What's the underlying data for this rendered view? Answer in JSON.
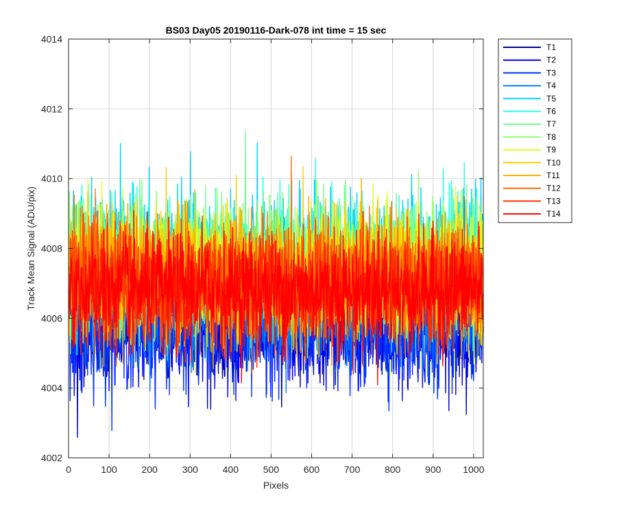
{
  "chart_data": {
    "type": "line",
    "title": "BS03 Day05 20190116-Dark-078 int time = 15 sec",
    "xlabel": "Pixels",
    "ylabel": "Track Mean Signal (ADU/pix)",
    "xlim": [
      0,
      1024
    ],
    "ylim": [
      4002,
      4014
    ],
    "xticks": [
      0,
      100,
      200,
      300,
      400,
      500,
      600,
      700,
      800,
      900,
      1000
    ],
    "yticks": [
      4002,
      4004,
      4006,
      4008,
      4010,
      4012,
      4014
    ],
    "grid": true,
    "legend_position": "outside-right",
    "series": [
      {
        "name": "T1",
        "color": "#00008f",
        "mean": 4006.0,
        "noise_sd": 0.75
      },
      {
        "name": "T2",
        "color": "#0000df",
        "mean": 4005.6,
        "noise_sd": 0.75
      },
      {
        "name": "T3",
        "color": "#0030ff",
        "mean": 4005.6,
        "noise_sd": 0.75
      },
      {
        "name": "T4",
        "color": "#0080ff",
        "mean": 4006.4,
        "noise_sd": 0.75
      },
      {
        "name": "T5",
        "color": "#00cfff",
        "mean": 4007.8,
        "noise_sd": 0.9
      },
      {
        "name": "T6",
        "color": "#20ffdf",
        "mean": 4007.6,
        "noise_sd": 0.9
      },
      {
        "name": "T7",
        "color": "#70ff8f",
        "mean": 4007.5,
        "noise_sd": 0.9
      },
      {
        "name": "T8",
        "color": "#8fff70",
        "mean": 4007.5,
        "noise_sd": 0.9
      },
      {
        "name": "T9",
        "color": "#dfff20",
        "mean": 4007.4,
        "noise_sd": 0.9
      },
      {
        "name": "T10",
        "color": "#ffcf00",
        "mean": 4007.3,
        "noise_sd": 0.85
      },
      {
        "name": "T11",
        "color": "#ffb000",
        "mean": 4007.2,
        "noise_sd": 0.85
      },
      {
        "name": "T12",
        "color": "#ff7000",
        "mean": 4007.0,
        "noise_sd": 0.85
      },
      {
        "name": "T13",
        "color": "#ff3000",
        "mean": 4006.9,
        "noise_sd": 0.85
      },
      {
        "name": "T14",
        "color": "#ff0000",
        "mean": 4006.8,
        "noise_sd": 0.8
      }
    ],
    "num_points": 1024
  }
}
